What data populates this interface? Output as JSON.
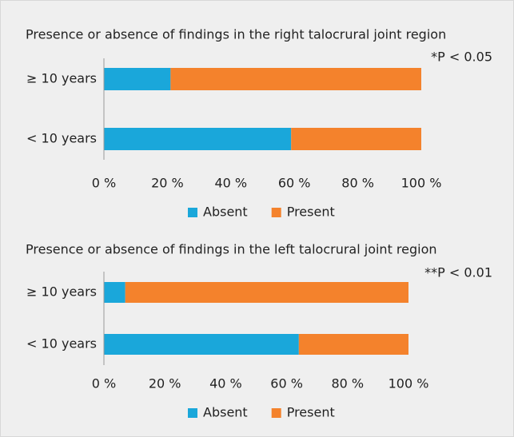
{
  "chart_data": [
    {
      "type": "bar",
      "orientation": "horizontal",
      "stacked": true,
      "title": "Presence or absence of findings in the right talocrural joint region",
      "annotation": "*P < 0.05",
      "categories": [
        "≥ 10 years",
        "< 10 years"
      ],
      "series": [
        {
          "name": "Absent",
          "color": "#1aa7da",
          "values": [
            21,
            59
          ]
        },
        {
          "name": "Present",
          "color": "#f4822c",
          "values": [
            79,
            41
          ]
        }
      ],
      "xlim": [
        0,
        100
      ],
      "xticks": [
        {
          "value": 0,
          "label": "0 %"
        },
        {
          "value": 20,
          "label": "20 %"
        },
        {
          "value": 40,
          "label": "40 %"
        },
        {
          "value": 60,
          "label": "60 %"
        },
        {
          "value": 80,
          "label": "80 %"
        },
        {
          "value": 100,
          "label": "100 %"
        }
      ],
      "legend": "bottom"
    },
    {
      "type": "bar",
      "orientation": "horizontal",
      "stacked": true,
      "title": "Presence or absence of findings in the left talocrural joint region",
      "annotation": "**P < 0.01",
      "categories": [
        "≥ 10 years",
        "< 10 years"
      ],
      "series": [
        {
          "name": "Absent",
          "color": "#1aa7da",
          "values": [
            7,
            64
          ]
        },
        {
          "name": "Present",
          "color": "#f4822c",
          "values": [
            93,
            36
          ]
        }
      ],
      "xlim": [
        0,
        100
      ],
      "xticks": [
        {
          "value": 0,
          "label": "0 %"
        },
        {
          "value": 20,
          "label": "20 %"
        },
        {
          "value": 40,
          "label": "40 %"
        },
        {
          "value": 60,
          "label": "60 %"
        },
        {
          "value": 80,
          "label": "80 %"
        },
        {
          "value": 100,
          "label": "100 %"
        }
      ],
      "legend": "bottom"
    }
  ]
}
